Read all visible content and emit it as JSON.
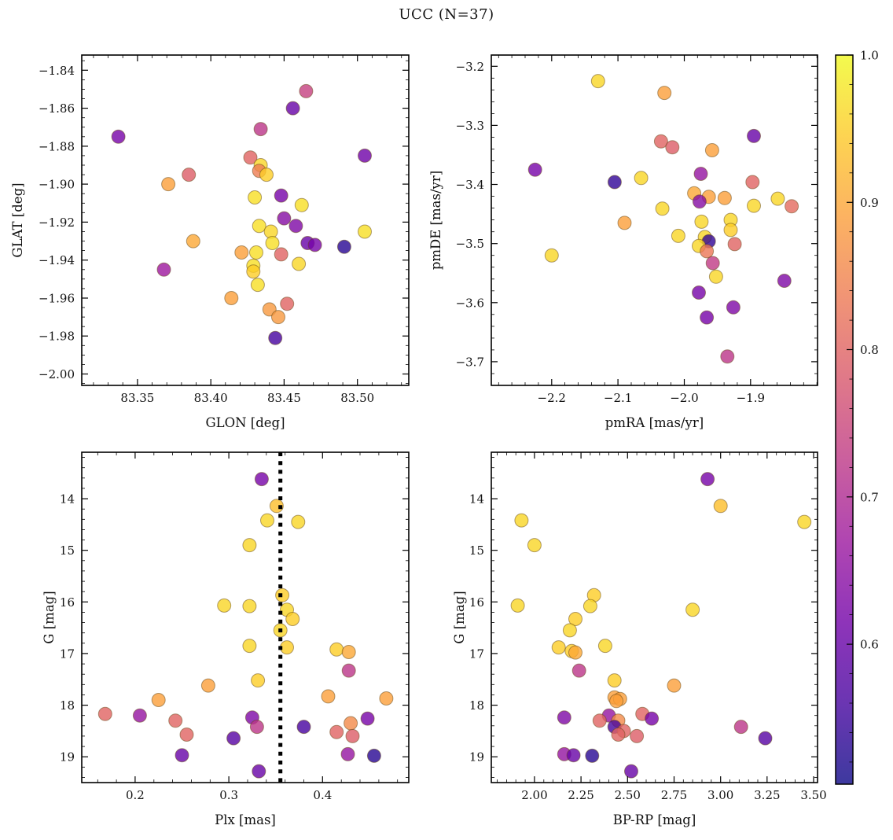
{
  "title": "UCC (N=37)",
  "colors": {
    "background": "#ffffff",
    "axis": "#000000",
    "text": "#111111",
    "marker_edge": "rgba(100,70,20,0.5)",
    "vline": "#000000",
    "plasma_stops": [
      "#0d0887",
      "#46039f",
      "#7201a8",
      "#9c179e",
      "#bd3786",
      "#d8576b",
      "#ed7953",
      "#fb9f3a",
      "#fdc926",
      "#f0f921"
    ]
  },
  "colorbar": {
    "vmin": 0.505,
    "vmax": 1.0,
    "ticks": [
      1.0,
      0.9,
      0.8,
      0.7,
      0.6
    ],
    "tick_labels": [
      "1.0",
      "0.9",
      "0.8",
      "0.7",
      "0.6"
    ],
    "minor_step": 0.02
  },
  "chart_data": [
    {
      "type": "scatter",
      "name": "glon-glat",
      "xlabel": "GLON [deg]",
      "ylabel": "GLAT [deg]",
      "xlim": [
        83.312,
        83.535
      ],
      "ylim": [
        -1.832,
        -2.006
      ],
      "xticks": [
        83.35,
        83.4,
        83.45,
        83.5
      ],
      "xtick_labels": [
        "83.35",
        "83.40",
        "83.45",
        "83.50"
      ],
      "yticks": [
        -1.84,
        -1.86,
        -1.88,
        -1.9,
        -1.92,
        -1.94,
        -1.96,
        -1.98,
        -2.0
      ],
      "ytick_labels": [
        "−1.84",
        "−1.86",
        "−1.88",
        "−1.90",
        "−1.92",
        "−1.94",
        "−1.96",
        "−1.98",
        "−2.00"
      ],
      "x_minor_step": 0.01,
      "y_minor_step": 0.005,
      "points_columns": [
        "x",
        "y",
        "c"
      ],
      "points": [
        [
          83.465,
          -1.851,
          0.74
        ],
        [
          83.456,
          -1.86,
          0.6
        ],
        [
          83.434,
          -1.871,
          0.72
        ],
        [
          83.337,
          -1.875,
          0.62
        ],
        [
          83.505,
          -1.885,
          0.61
        ],
        [
          83.427,
          -1.886,
          0.8
        ],
        [
          83.434,
          -1.89,
          0.96
        ],
        [
          83.433,
          -1.893,
          0.84
        ],
        [
          83.438,
          -1.895,
          0.95
        ],
        [
          83.385,
          -1.895,
          0.79
        ],
        [
          83.371,
          -1.9,
          0.89
        ],
        [
          83.43,
          -1.907,
          0.97
        ],
        [
          83.448,
          -1.906,
          0.62
        ],
        [
          83.462,
          -1.911,
          0.97
        ],
        [
          83.45,
          -1.918,
          0.64
        ],
        [
          83.433,
          -1.922,
          0.97
        ],
        [
          83.441,
          -1.925,
          0.96
        ],
        [
          83.458,
          -1.922,
          0.63
        ],
        [
          83.505,
          -1.925,
          0.97
        ],
        [
          83.466,
          -1.931,
          0.6
        ],
        [
          83.471,
          -1.932,
          0.62
        ],
        [
          83.491,
          -1.933,
          0.53
        ],
        [
          83.442,
          -1.931,
          0.97
        ],
        [
          83.388,
          -1.93,
          0.9
        ],
        [
          83.421,
          -1.936,
          0.89
        ],
        [
          83.431,
          -1.936,
          0.97
        ],
        [
          83.448,
          -1.937,
          0.8
        ],
        [
          83.46,
          -1.942,
          0.96
        ],
        [
          83.429,
          -1.943,
          0.97
        ],
        [
          83.429,
          -1.946,
          0.95
        ],
        [
          83.368,
          -1.945,
          0.67
        ],
        [
          83.432,
          -1.953,
          0.97
        ],
        [
          83.414,
          -1.96,
          0.89
        ],
        [
          83.452,
          -1.963,
          0.8
        ],
        [
          83.44,
          -1.966,
          0.88
        ],
        [
          83.446,
          -1.97,
          0.88
        ],
        [
          83.444,
          -1.981,
          0.56
        ]
      ]
    },
    {
      "type": "scatter",
      "name": "pmra-pmde",
      "xlabel": "pmRA [mas/yr]",
      "ylabel": "pmDE [mas/yr]",
      "xlim": [
        -2.291,
        -1.799
      ],
      "ylim": [
        -3.181,
        -3.74
      ],
      "xticks": [
        -2.2,
        -2.1,
        -2.0,
        -1.9
      ],
      "xtick_labels": [
        "−2.2",
        "−2.1",
        "−2.0",
        "−1.9"
      ],
      "yticks": [
        -3.2,
        -3.3,
        -3.4,
        -3.5,
        -3.6,
        -3.7
      ],
      "ytick_labels": [
        "−3.2",
        "−3.3",
        "−3.4",
        "−3.5",
        "−3.6",
        "−3.7"
      ],
      "x_minor_step": 0.02,
      "y_minor_step": 0.02,
      "points_columns": [
        "x",
        "y",
        "c"
      ],
      "points": [
        [
          -2.13,
          -3.225,
          0.96
        ],
        [
          -2.03,
          -3.245,
          0.89
        ],
        [
          -1.895,
          -3.318,
          0.6
        ],
        [
          -2.035,
          -3.327,
          0.8
        ],
        [
          -2.018,
          -3.337,
          0.79
        ],
        [
          -1.958,
          -3.342,
          0.89
        ],
        [
          -2.225,
          -3.375,
          0.62
        ],
        [
          -1.975,
          -3.382,
          0.66
        ],
        [
          -2.065,
          -3.389,
          0.96
        ],
        [
          -2.105,
          -3.396,
          0.54
        ],
        [
          -1.897,
          -3.396,
          0.8
        ],
        [
          -1.985,
          -3.415,
          0.9
        ],
        [
          -1.963,
          -3.421,
          0.89
        ],
        [
          -1.939,
          -3.423,
          0.89
        ],
        [
          -1.977,
          -3.429,
          0.64
        ],
        [
          -1.895,
          -3.436,
          0.96
        ],
        [
          -1.859,
          -3.424,
          0.96
        ],
        [
          -1.838,
          -3.437,
          0.81
        ],
        [
          -2.033,
          -3.441,
          0.96
        ],
        [
          -1.974,
          -3.463,
          0.96
        ],
        [
          -1.93,
          -3.46,
          0.96
        ],
        [
          -2.09,
          -3.465,
          0.89
        ],
        [
          -2.009,
          -3.487,
          0.96
        ],
        [
          -1.93,
          -3.477,
          0.95
        ],
        [
          -1.969,
          -3.489,
          0.96
        ],
        [
          -1.963,
          -3.496,
          0.54
        ],
        [
          -1.978,
          -3.504,
          0.96
        ],
        [
          -1.966,
          -3.513,
          0.83
        ],
        [
          -1.924,
          -3.501,
          0.8
        ],
        [
          -2.2,
          -3.52,
          0.96
        ],
        [
          -1.957,
          -3.533,
          0.73
        ],
        [
          -1.952,
          -3.556,
          0.96
        ],
        [
          -1.978,
          -3.583,
          0.62
        ],
        [
          -1.849,
          -3.563,
          0.63
        ],
        [
          -1.926,
          -3.608,
          0.63
        ],
        [
          -1.966,
          -3.625,
          0.62
        ],
        [
          -1.935,
          -3.691,
          0.72
        ]
      ]
    },
    {
      "type": "scatter",
      "name": "plx-g",
      "xlabel": "Plx [mas]",
      "ylabel": "G [mag]",
      "xlim": [
        0.143,
        0.492
      ],
      "ylim": [
        13.1,
        19.5
      ],
      "xticks": [
        0.2,
        0.3,
        0.4
      ],
      "xtick_labels": [
        "0.2",
        "0.3",
        "0.4"
      ],
      "yticks": [
        14,
        15,
        16,
        17,
        18,
        19
      ],
      "ytick_labels": [
        "14",
        "15",
        "16",
        "17",
        "18",
        "19"
      ],
      "x_minor_step": 0.02,
      "y_minor_step": 0.2,
      "vline": {
        "x": 0.355,
        "style": "dotted"
      },
      "points_columns": [
        "x",
        "y",
        "c"
      ],
      "points": [
        [
          0.335,
          13.62,
          0.62
        ],
        [
          0.351,
          14.14,
          0.93
        ],
        [
          0.341,
          14.42,
          0.96
        ],
        [
          0.374,
          14.45,
          0.96
        ],
        [
          0.322,
          14.9,
          0.96
        ],
        [
          0.357,
          15.87,
          0.95
        ],
        [
          0.295,
          16.07,
          0.96
        ],
        [
          0.322,
          16.08,
          0.96
        ],
        [
          0.362,
          16.15,
          0.96
        ],
        [
          0.368,
          16.33,
          0.95
        ],
        [
          0.355,
          16.55,
          0.96
        ],
        [
          0.322,
          16.85,
          0.96
        ],
        [
          0.362,
          16.88,
          0.95
        ],
        [
          0.415,
          16.92,
          0.95
        ],
        [
          0.428,
          16.97,
          0.9
        ],
        [
          0.428,
          17.33,
          0.72
        ],
        [
          0.331,
          17.52,
          0.95
        ],
        [
          0.278,
          17.62,
          0.89
        ],
        [
          0.406,
          17.83,
          0.89
        ],
        [
          0.468,
          17.87,
          0.89
        ],
        [
          0.225,
          17.9,
          0.89
        ],
        [
          0.168,
          18.17,
          0.8
        ],
        [
          0.205,
          18.2,
          0.66
        ],
        [
          0.325,
          18.24,
          0.63
        ],
        [
          0.448,
          18.26,
          0.62
        ],
        [
          0.243,
          18.3,
          0.8
        ],
        [
          0.43,
          18.35,
          0.86
        ],
        [
          0.33,
          18.42,
          0.72
        ],
        [
          0.38,
          18.42,
          0.56
        ],
        [
          0.415,
          18.52,
          0.8
        ],
        [
          0.255,
          18.57,
          0.8
        ],
        [
          0.432,
          18.6,
          0.79
        ],
        [
          0.305,
          18.64,
          0.58
        ],
        [
          0.427,
          18.95,
          0.66
        ],
        [
          0.25,
          18.97,
          0.6
        ],
        [
          0.455,
          18.98,
          0.53
        ],
        [
          0.332,
          19.28,
          0.6
        ]
      ]
    },
    {
      "type": "scatter",
      "name": "bprp-g",
      "xlabel": "BP-RP [mag]",
      "ylabel": "G [mag]",
      "xlim": [
        1.768,
        3.521
      ],
      "ylim": [
        13.1,
        19.5
      ],
      "xticks": [
        2.0,
        2.25,
        2.5,
        2.75,
        3.0,
        3.25,
        3.5
      ],
      "xtick_labels": [
        "2.00",
        "2.25",
        "2.50",
        "2.75",
        "3.00",
        "3.25",
        "3.50"
      ],
      "yticks": [
        14,
        15,
        16,
        17,
        18,
        19
      ],
      "ytick_labels": [
        "14",
        "15",
        "16",
        "17",
        "18",
        "19"
      ],
      "x_minor_step": 0.05,
      "y_minor_step": 0.2,
      "points_columns": [
        "x",
        "y",
        "c"
      ],
      "points": [
        [
          2.93,
          13.62,
          0.62
        ],
        [
          3.0,
          14.14,
          0.93
        ],
        [
          1.93,
          14.42,
          0.96
        ],
        [
          3.45,
          14.45,
          0.96
        ],
        [
          2.0,
          14.9,
          0.96
        ],
        [
          2.32,
          15.87,
          0.95
        ],
        [
          1.91,
          16.07,
          0.96
        ],
        [
          2.3,
          16.08,
          0.96
        ],
        [
          2.85,
          16.15,
          0.96
        ],
        [
          2.22,
          16.33,
          0.95
        ],
        [
          2.19,
          16.55,
          0.96
        ],
        [
          2.38,
          16.85,
          0.96
        ],
        [
          2.13,
          16.88,
          0.95
        ],
        [
          2.2,
          16.95,
          0.95
        ],
        [
          2.22,
          16.98,
          0.9
        ],
        [
          2.24,
          17.33,
          0.72
        ],
        [
          2.43,
          17.52,
          0.95
        ],
        [
          2.75,
          17.62,
          0.89
        ],
        [
          2.43,
          17.85,
          0.89
        ],
        [
          2.46,
          17.88,
          0.89
        ],
        [
          2.44,
          17.92,
          0.89
        ],
        [
          2.58,
          18.17,
          0.8
        ],
        [
          2.4,
          18.2,
          0.66
        ],
        [
          2.16,
          18.24,
          0.63
        ],
        [
          2.63,
          18.26,
          0.62
        ],
        [
          2.35,
          18.3,
          0.8
        ],
        [
          2.45,
          18.3,
          0.86
        ],
        [
          3.11,
          18.42,
          0.72
        ],
        [
          2.43,
          18.42,
          0.56
        ],
        [
          2.48,
          18.5,
          0.8
        ],
        [
          2.45,
          18.57,
          0.8
        ],
        [
          2.55,
          18.6,
          0.79
        ],
        [
          3.24,
          18.64,
          0.58
        ],
        [
          2.16,
          18.95,
          0.66
        ],
        [
          2.21,
          18.97,
          0.6
        ],
        [
          2.31,
          18.98,
          0.53
        ],
        [
          2.52,
          19.28,
          0.6
        ]
      ]
    }
  ]
}
